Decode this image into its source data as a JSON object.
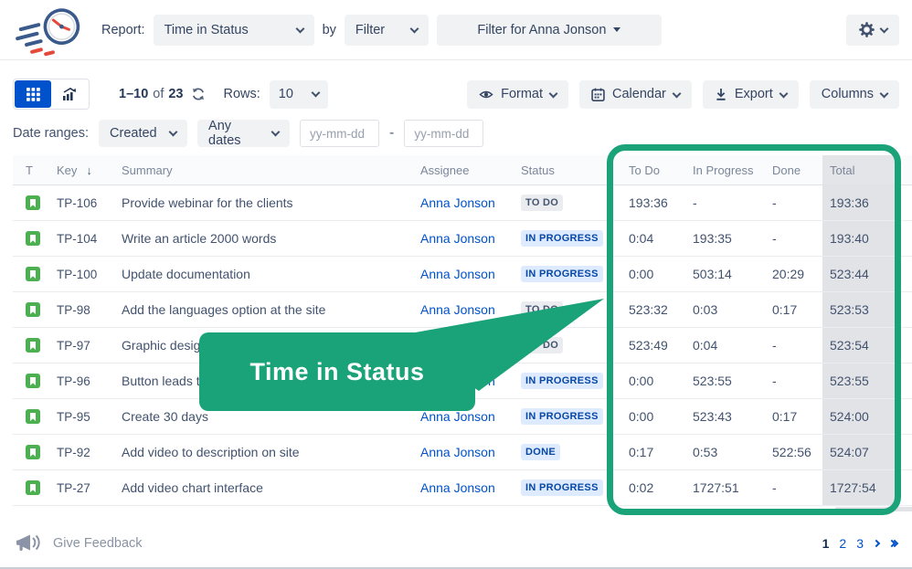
{
  "header": {
    "report_label": "Report:",
    "report_value": "Time in Status",
    "by_label": "by",
    "filter_type_value": "Filter",
    "filter_value": "Filter for Anna Jonson"
  },
  "toolbar": {
    "range_from_to": "1–10",
    "range_of": "of",
    "range_count": "23",
    "rows_label": "Rows:",
    "rows_value": "10",
    "format_label": "Format",
    "calendar_label": "Calendar",
    "export_label": "Export",
    "columns_label": "Columns"
  },
  "filters": {
    "date_ranges_label": "Date ranges:",
    "field_value": "Created",
    "preset_value": "Any dates",
    "date_from_placeholder": "yy-mm-dd",
    "date_to_placeholder": "yy-mm-dd",
    "separator": "-"
  },
  "table": {
    "columns": {
      "type": "T",
      "key": "Key",
      "sort_icon": "arrow-down",
      "summary": "Summary",
      "assignee": "Assignee",
      "status": "Status",
      "todo": "To Do",
      "in_progress": "In Progress",
      "done": "Done",
      "total": "Total"
    },
    "rows": [
      {
        "key": "TP-106",
        "summary": "Provide webinar for the clients",
        "assignee": "Anna Jonson",
        "status": "TO DO",
        "status_style": "gray",
        "todo": "193:36",
        "in_progress": "-",
        "done": "-",
        "total": "193:36"
      },
      {
        "key": "TP-104",
        "summary": "Write an article 2000 words",
        "assignee": "Anna Jonson",
        "status": "IN PROGRESS",
        "status_style": "blue",
        "todo": "0:04",
        "in_progress": "193:35",
        "done": "-",
        "total": "193:40"
      },
      {
        "key": "TP-100",
        "summary": "Update documentation",
        "assignee": "Anna Jonson",
        "status": "IN PROGRESS",
        "status_style": "blue",
        "todo": "0:00",
        "in_progress": "503:14",
        "done": "20:29",
        "total": "523:44"
      },
      {
        "key": "TP-98",
        "summary": "Add the languages option at the site",
        "assignee": "Anna Jonson",
        "status": "TO DO",
        "status_style": "gray",
        "todo": "523:32",
        "in_progress": "0:03",
        "done": "0:17",
        "total": "523:53"
      },
      {
        "key": "TP-97",
        "summary": "Graphic desig",
        "assignee": "Anna Jonson",
        "status": "TO DO",
        "status_style": "gray",
        "todo": "523:49",
        "in_progress": "0:04",
        "done": "-",
        "total": "523:54"
      },
      {
        "key": "TP-96",
        "summary": "Button leads t",
        "assignee": "Anna Jonson",
        "status": "IN PROGRESS",
        "status_style": "blue",
        "todo": "0:00",
        "in_progress": "523:55",
        "done": "-",
        "total": "523:55"
      },
      {
        "key": "TP-95",
        "summary": "Create 30 days",
        "assignee": "Anna Jonson",
        "status": "IN PROGRESS",
        "status_style": "blue",
        "todo": "0:00",
        "in_progress": "523:43",
        "done": "0:17",
        "total": "524:00"
      },
      {
        "key": "TP-92",
        "summary": "Add video to description on site",
        "assignee": "Anna Jonson",
        "status": "DONE",
        "status_style": "blue",
        "todo": "0:17",
        "in_progress": "0:53",
        "done": "522:56",
        "total": "524:07"
      },
      {
        "key": "TP-27",
        "summary": "Add video chart interface",
        "assignee": "Anna Jonson",
        "status": "IN PROGRESS",
        "status_style": "blue",
        "todo": "0:02",
        "in_progress": "1727:51",
        "done": "-",
        "total": "1727:54"
      }
    ]
  },
  "callout": {
    "text": "Time in Status"
  },
  "footer": {
    "feedback_label": "Give Feedback",
    "pages": [
      "1",
      "2",
      "3"
    ],
    "current_page": "1"
  },
  "icons": {
    "logo": "speeding-clock",
    "view_active": "grid-view",
    "view_alt": "chart-view",
    "refresh": "refresh-arrows",
    "format": "eye",
    "calendar": "calendar",
    "export": "download",
    "settings": "gear",
    "issue_type": "story-bookmark",
    "feedback": "megaphone"
  },
  "colors": {
    "accent_green": "#1AA279",
    "active_blue": "#0052CC",
    "link_blue": "#0052CC",
    "badge_blue_bg": "#DEEBFF",
    "badge_blue_text": "#0747A6",
    "badge_gray_bg": "#EBECF0",
    "badge_gray_text": "#44546F",
    "total_col_bg": "#E2E3E6",
    "story_green": "#4CAF50"
  }
}
